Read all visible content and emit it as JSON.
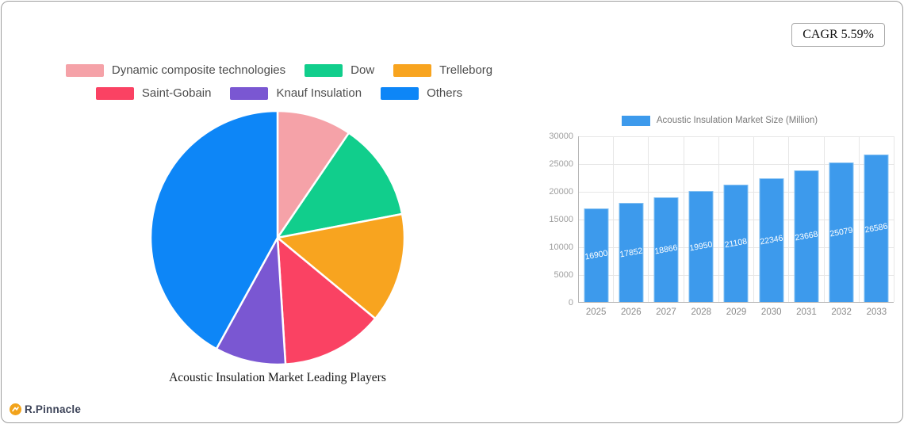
{
  "cagr_badge": {
    "label": "CAGR 5.59%"
  },
  "footer": {
    "brand": "R.Pinnacle",
    "logo_color": "#f2a31b"
  },
  "chart_data": [
    {
      "type": "pie",
      "title": "Acoustic Insulation Market Leading Players",
      "labels": [
        "Dynamic composite technologies",
        "Dow",
        "Trelleborg",
        "Saint-Gobain",
        "Knauf Insulation",
        "Others"
      ],
      "values": [
        9.5,
        12.5,
        14,
        13,
        9,
        42
      ],
      "colors": [
        "#f5a2a8",
        "#11ce8c",
        "#f8a41f",
        "#fa4263",
        "#7a57d2",
        "#0d86f7"
      ],
      "legend_rows": [
        3,
        3
      ],
      "start_angle_deg": 0,
      "direction": "clockwise",
      "slice_border_color": "#ffffff"
    },
    {
      "type": "bar",
      "legend": "Acoustic Insulation Market Size (Million)",
      "categories": [
        "2025",
        "2026",
        "2027",
        "2028",
        "2029",
        "2030",
        "2031",
        "2032",
        "2033"
      ],
      "values": [
        16900,
        17852,
        18866,
        19950,
        21108,
        22346,
        23668,
        25079,
        26586
      ],
      "bar_color": "#3d9aec",
      "ylim": [
        0,
        30000
      ],
      "ytick_step": 5000,
      "grid": true,
      "legend_position": "top"
    }
  ]
}
